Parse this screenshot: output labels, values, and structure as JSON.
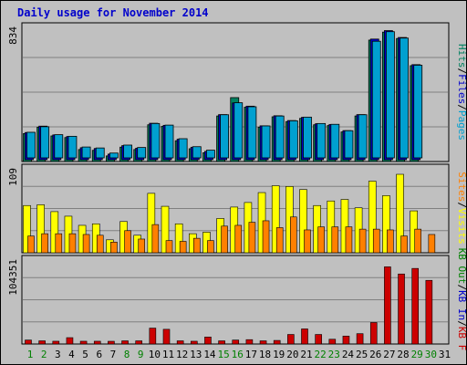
{
  "page": {
    "title": "Daily usage for November 2014"
  },
  "colors": {
    "pages": "#00a0d0",
    "files": "#0000cc",
    "hits": "#008060",
    "visits": "#ffff00",
    "sites": "#ff8000",
    "kb_out": "#008000",
    "kb_in": "#0000cc",
    "kb_f": "#cc0000",
    "title": "#0000cc",
    "background": "#c0c0c0",
    "gridline": "#808080"
  },
  "chart_data": [
    {
      "type": "bar",
      "panel": "top",
      "ymax_label": "834",
      "ylim": [
        0,
        834
      ],
      "legend": [
        {
          "label": "Pages",
          "color": "#00a0d0"
        },
        {
          "label": "Files",
          "color": "#0000cc"
        },
        {
          "label": "Hits",
          "color": "#008060"
        }
      ],
      "separator": "/",
      "categories": [
        "1",
        "2",
        "3",
        "4",
        "5",
        "6",
        "7",
        "8",
        "9",
        "10",
        "11",
        "12",
        "13",
        "14",
        "15",
        "16",
        "17",
        "18",
        "19",
        "20",
        "21",
        "22",
        "23",
        "24",
        "25",
        "26",
        "27",
        "28",
        "29",
        "30"
      ],
      "series": [
        {
          "name": "Hits",
          "values": [
            175,
            215,
            160,
            150,
            75,
            70,
            35,
            90,
            75,
            230,
            220,
            130,
            80,
            55,
            285,
            400,
            340,
            215,
            280,
            250,
            270,
            230,
            225,
            185,
            285,
            760,
            810,
            770,
            600,
            0
          ]
        },
        {
          "name": "Files",
          "values": [
            170,
            210,
            155,
            145,
            75,
            70,
            35,
            88,
            72,
            228,
            215,
            128,
            78,
            52,
            282,
            355,
            335,
            212,
            275,
            245,
            265,
            225,
            220,
            182,
            282,
            755,
            808,
            765,
            595,
            0
          ]
        },
        {
          "name": "Pages",
          "values": [
            160,
            195,
            145,
            135,
            68,
            62,
            30,
            80,
            65,
            215,
            205,
            120,
            70,
            48,
            270,
            345,
            320,
            200,
            262,
            232,
            255,
            215,
            210,
            170,
            270,
            730,
            790,
            750,
            580,
            0
          ]
        }
      ]
    },
    {
      "type": "bar",
      "panel": "middle",
      "ymax_label": "109",
      "ylim": [
        0,
        109
      ],
      "legend": [
        {
          "label": "Visits",
          "color": "#ffff00"
        },
        {
          "label": "Sites",
          "color": "#ff8000"
        }
      ],
      "separator": "/",
      "categories": [
        "1",
        "2",
        "3",
        "4",
        "5",
        "6",
        "7",
        "8",
        "9",
        "10",
        "11",
        "12",
        "13",
        "14",
        "15",
        "16",
        "17",
        "18",
        "19",
        "20",
        "21",
        "22",
        "23",
        "24",
        "25",
        "26",
        "27",
        "28",
        "29",
        "30"
      ],
      "series": [
        {
          "name": "Visits",
          "values": [
            62,
            63,
            54,
            48,
            36,
            38,
            17,
            41,
            23,
            78,
            61,
            38,
            25,
            27,
            45,
            60,
            66,
            79,
            88,
            87,
            83,
            62,
            68,
            70,
            59,
            94,
            75,
            103,
            55,
            0
          ]
        },
        {
          "name": "Sites",
          "values": [
            22,
            25,
            25,
            25,
            24,
            23,
            14,
            29,
            18,
            37,
            16,
            15,
            19,
            16,
            35,
            36,
            40,
            42,
            33,
            47,
            30,
            34,
            34,
            34,
            31,
            31,
            30,
            22,
            31,
            24
          ]
        }
      ]
    },
    {
      "type": "bar",
      "panel": "bottom",
      "ymax_label": "104351",
      "ylim": [
        0,
        104351
      ],
      "legend": [
        {
          "label": "KB F",
          "color": "#cc0000"
        },
        {
          "label": "KB In",
          "color": "#0000cc"
        },
        {
          "label": "KB Out",
          "color": "#008000"
        }
      ],
      "separator": "/",
      "categories": [
        "1",
        "2",
        "3",
        "4",
        "5",
        "6",
        "7",
        "8",
        "9",
        "10",
        "11",
        "12",
        "13",
        "14",
        "15",
        "16",
        "17",
        "18",
        "19",
        "20",
        "21",
        "22",
        "23",
        "24",
        "25",
        "26",
        "27",
        "28",
        "29",
        "30"
      ],
      "series": [
        {
          "name": "KB F",
          "values": [
            5000,
            4000,
            3500,
            8000,
            3500,
            3500,
            2000,
            4000,
            4000,
            20000,
            18500,
            4000,
            3500,
            8800,
            4000,
            5000,
            5500,
            4000,
            4500,
            12000,
            19000,
            12000,
            6000,
            10000,
            13000,
            27000,
            97000,
            88000,
            95000,
            80000
          ]
        }
      ]
    }
  ],
  "x_axis": {
    "labels": [
      "1",
      "2",
      "3",
      "4",
      "5",
      "6",
      "7",
      "8",
      "9",
      "10",
      "11",
      "12",
      "13",
      "14",
      "15",
      "16",
      "17",
      "18",
      "19",
      "20",
      "21",
      "22",
      "23",
      "24",
      "25",
      "26",
      "27",
      "28",
      "29",
      "30",
      "31"
    ],
    "label_colors": [
      "#008000",
      "#008000",
      "#000000",
      "#000000",
      "#000000",
      "#000000",
      "#000000",
      "#008000",
      "#008000",
      "#000000",
      "#000000",
      "#000000",
      "#000000",
      "#000000",
      "#008000",
      "#008000",
      "#000000",
      "#000000",
      "#000000",
      "#000000",
      "#000000",
      "#008000",
      "#008000",
      "#000000",
      "#000000",
      "#000000",
      "#000000",
      "#000000",
      "#008000",
      "#008000",
      "#000000"
    ]
  }
}
